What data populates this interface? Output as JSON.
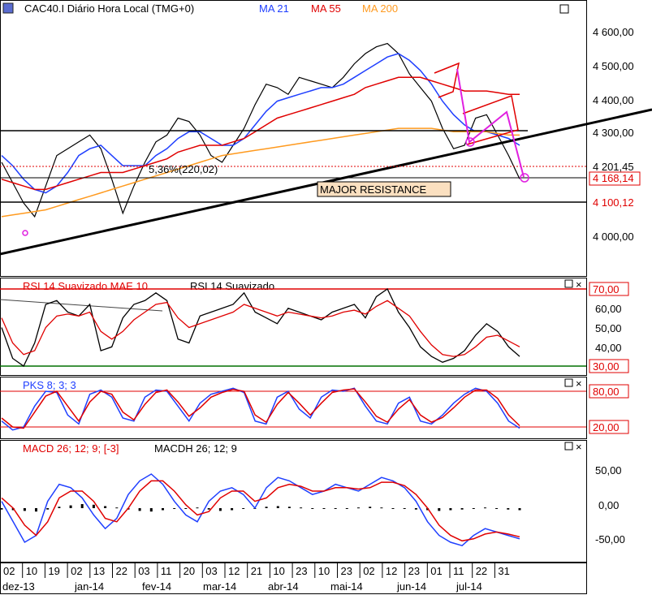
{
  "main": {
    "title": "CAC40.I Diário Hora Local (TMG+0)",
    "ma21_label": "MA 21",
    "ma55_label": "MA 55",
    "ma200_label": "MA 200",
    "price_ticks": [
      "4 600,00",
      "4 500,00",
      "4 400,00",
      "4 300,00",
      "4 000,00"
    ],
    "last_price": "4 201,45",
    "low_price": "4 168,14",
    "resistance_price": "4 100,12",
    "pct_annotation": "5,36%(220,02)",
    "resistance_label": "MAJOR RESISTANCE"
  },
  "rsi": {
    "label1": "RSI 14 Suavizado MAE 10",
    "label2": "RSI 14 Suavizado",
    "ticks": [
      "70,00",
      "60,00",
      "50,00",
      "40,00",
      "30,00"
    ]
  },
  "stoch": {
    "label": "PKS 8; 3; 3",
    "ticks": [
      "80,00",
      "20,00"
    ]
  },
  "macd": {
    "label1": "MACD 26; 12; 9; [-3]",
    "label2": "MACDH 26; 12; 9",
    "ticks": [
      "50,00",
      "0,00",
      "-50,00"
    ]
  },
  "xaxis": {
    "days": [
      "02",
      "10",
      "19",
      "02",
      "13",
      "22",
      "03",
      "11",
      "20",
      "03",
      "12",
      "21",
      "10",
      "23",
      "10",
      "23",
      "02",
      "12",
      "23",
      "01",
      "11",
      "22",
      "31"
    ],
    "months": [
      "dez-13",
      "jan-14",
      "fev-14",
      "mar-14",
      "abr-14",
      "mai-14",
      "jun-14",
      "jul-14"
    ]
  },
  "colors": {
    "price": "#000000",
    "ma21": "#1f3fff",
    "ma55": "#e00000",
    "ma200": "#ff9a1f",
    "trend": "#000000",
    "magenta": "#e020e0",
    "green": "#007000"
  },
  "chart_data": {
    "type": "line",
    "title": "CAC40.I Diário Hora Local (TMG+0)",
    "series": [
      {
        "name": "CAC40.I",
        "values": [
          4250,
          4190,
          4130,
          4090,
          4180,
          4270,
          4290,
          4310,
          4330,
          4290,
          4200,
          4100,
          4180,
          4250,
          4310,
          4330,
          4380,
          4370,
          4330,
          4270,
          4250,
          4300,
          4350,
          4420,
          4480,
          4470,
          4450,
          4500,
          4490,
          4480,
          4470,
          4500,
          4540,
          4570,
          4590,
          4600,
          4570,
          4510,
          4470,
          4430,
          4350,
          4290,
          4300,
          4380,
          4390,
          4330,
          4270,
          4201
        ]
      },
      {
        "name": "MA 21",
        "values": [
          4270,
          4240,
          4200,
          4170,
          4160,
          4180,
          4220,
          4270,
          4290,
          4300,
          4270,
          4240,
          4240,
          4240,
          4270,
          4290,
          4320,
          4340,
          4340,
          4320,
          4300,
          4300,
          4320,
          4360,
          4400,
          4430,
          4440,
          4450,
          4460,
          4470,
          4470,
          4480,
          4500,
          4520,
          4540,
          4560,
          4570,
          4550,
          4520,
          4480,
          4430,
          4390,
          4360,
          4340,
          4340,
          4330,
          4320,
          4300
        ]
      },
      {
        "name": "MA 55",
        "values": [
          4200,
          4190,
          4180,
          4170,
          4170,
          4180,
          4190,
          4200,
          4210,
          4220,
          4220,
          4220,
          4230,
          4240,
          4250,
          4260,
          4280,
          4290,
          4300,
          4300,
          4300,
          4310,
          4320,
          4340,
          4360,
          4380,
          4390,
          4400,
          4410,
          4420,
          4430,
          4440,
          4450,
          4470,
          4480,
          4490,
          4500,
          4500,
          4500,
          4490,
          4480,
          4470,
          4460,
          4460,
          4460,
          4455,
          4450,
          4450
        ]
      },
      {
        "name": "MA 200",
        "values": [
          4090,
          4095,
          4100,
          4105,
          4110,
          4120,
          4130,
          4140,
          4150,
          4160,
          4170,
          4180,
          4190,
          4200,
          4210,
          4220,
          4230,
          4240,
          4250,
          4260,
          4270,
          4275,
          4280,
          4285,
          4290,
          4295,
          4300,
          4305,
          4310,
          4315,
          4320,
          4325,
          4330,
          4335,
          4340,
          4345,
          4350,
          4350,
          4350,
          4350,
          4345,
          4340,
          4340,
          4340,
          4340,
          4335,
          4330,
          4330
        ]
      }
    ],
    "rsi": {
      "series": [
        {
          "name": "RSI 14 Suavizado",
          "values": [
            50,
            34,
            30,
            42,
            62,
            64,
            58,
            56,
            62,
            38,
            40,
            55,
            62,
            64,
            68,
            64,
            44,
            42,
            56,
            58,
            60,
            62,
            68,
            58,
            55,
            52,
            60,
            58,
            56,
            54,
            58,
            60,
            62,
            55,
            66,
            70,
            58,
            50,
            40,
            35,
            32,
            34,
            38,
            46,
            52,
            48,
            40,
            35
          ]
        },
        {
          "name": "RSI 14 Suavizado MAE 10",
          "values": [
            55,
            42,
            36,
            38,
            50,
            56,
            57,
            56,
            58,
            48,
            44,
            48,
            54,
            58,
            62,
            63,
            55,
            50,
            52,
            54,
            56,
            58,
            62,
            60,
            58,
            56,
            58,
            57,
            56,
            55,
            56,
            58,
            59,
            57,
            61,
            64,
            60,
            56,
            48,
            41,
            36,
            35,
            36,
            40,
            45,
            46,
            43,
            40
          ]
        }
      ],
      "levels": [
        70,
        30
      ]
    },
    "stoch": {
      "series": [
        {
          "name": "PKS 8; 3; 3 K",
          "values": [
            30,
            15,
            20,
            55,
            80,
            78,
            40,
            25,
            75,
            82,
            70,
            35,
            30,
            70,
            82,
            80,
            55,
            30,
            60,
            75,
            80,
            85,
            78,
            30,
            25,
            70,
            80,
            50,
            35,
            70,
            82,
            80,
            85,
            55,
            30,
            25,
            60,
            70,
            30,
            25,
            40,
            60,
            75,
            85,
            80,
            60,
            30,
            18
          ]
        },
        {
          "name": "PKS 8; 3; 3 D",
          "values": [
            35,
            20,
            18,
            45,
            72,
            80,
            55,
            30,
            62,
            80,
            75,
            45,
            32,
            58,
            78,
            82,
            62,
            38,
            52,
            70,
            78,
            83,
            80,
            40,
            28,
            58,
            78,
            60,
            40,
            60,
            78,
            82,
            84,
            62,
            38,
            28,
            50,
            66,
            40,
            28,
            36,
            52,
            70,
            82,
            82,
            68,
            40,
            22
          ]
        }
      ],
      "levels": [
        80,
        20
      ]
    },
    "macd": {
      "series": [
        {
          "name": "MACD 26; 12; 9; [-3]",
          "values": [
            10,
            -20,
            -50,
            -40,
            10,
            35,
            30,
            15,
            -10,
            -30,
            -15,
            20,
            40,
            50,
            35,
            10,
            -10,
            -20,
            10,
            25,
            30,
            20,
            0,
            30,
            45,
            40,
            30,
            20,
            25,
            35,
            30,
            25,
            35,
            45,
            40,
            30,
            10,
            -20,
            -40,
            -50,
            -55,
            -40,
            -30,
            -35,
            -40,
            -45
          ]
        },
        {
          "name": "MACD signal",
          "values": [
            15,
            0,
            -25,
            -40,
            -20,
            15,
            25,
            25,
            10,
            -15,
            -20,
            0,
            25,
            40,
            40,
            25,
            5,
            -10,
            -5,
            15,
            25,
            25,
            10,
            15,
            30,
            35,
            32,
            25,
            25,
            30,
            30,
            28,
            30,
            38,
            38,
            33,
            20,
            0,
            -25,
            -40,
            -48,
            -45,
            -38,
            -35,
            -38,
            -42
          ]
        }
      ],
      "histogram": [
        -2,
        -3,
        -4,
        -5,
        -2,
        2,
        4,
        6,
        5,
        3,
        1,
        -2,
        -4,
        -5,
        -3,
        -1,
        0,
        1,
        -2,
        -4,
        -3,
        -1,
        0,
        2,
        3,
        2,
        1,
        0,
        -1,
        -1,
        0,
        1,
        2,
        1,
        0,
        -1,
        -2,
        -3,
        -4,
        -3,
        -2,
        0,
        1,
        -1,
        -2,
        -3
      ],
      "zero_line": 0
    },
    "ylim_price": [
      3920,
      4680
    ],
    "grid": false,
    "legend_placement": "top-left"
  }
}
